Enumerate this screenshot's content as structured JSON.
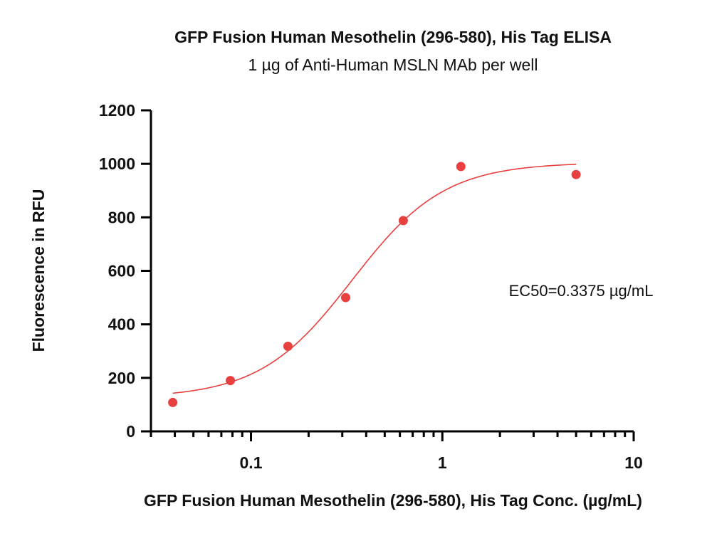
{
  "chart_data": {
    "type": "scatter",
    "title": "GFP Fusion Human Mesothelin (296-580), His Tag ELISA",
    "subtitle": "1 µg of Anti-Human MSLN MAb per well",
    "xlabel": "GFP Fusion Human Mesothelin (296-580), His Tag Conc. (µg/mL)",
    "ylabel": "Fluorescence in RFU",
    "x_scale": "log",
    "xlim": [
      0.03,
      10
    ],
    "ylim": [
      0,
      1200
    ],
    "x_ticks": [
      0.1,
      1,
      10
    ],
    "x_tick_labels": [
      "0.1",
      "1",
      "10"
    ],
    "y_ticks": [
      0,
      200,
      400,
      600,
      800,
      1000,
      1200
    ],
    "y_tick_labels": [
      "0",
      "200",
      "400",
      "600",
      "800",
      "1000",
      "1200"
    ],
    "series": [
      {
        "color": "#e8403f",
        "x": [
          0.039,
          0.078,
          0.156,
          0.3125,
          0.625,
          1.25,
          5
        ],
        "y": [
          108,
          190,
          318,
          500,
          788,
          990,
          960
        ]
      }
    ],
    "fit": {
      "model": "4PL",
      "bottom": 125,
      "top": 1005,
      "ec50": 0.3375,
      "hill": 1.8,
      "x_range": [
        0.039,
        5
      ],
      "color": "#e8403f"
    },
    "annotation": "EC50=0.3375 µg/mL",
    "grid": false,
    "legend": "none"
  }
}
